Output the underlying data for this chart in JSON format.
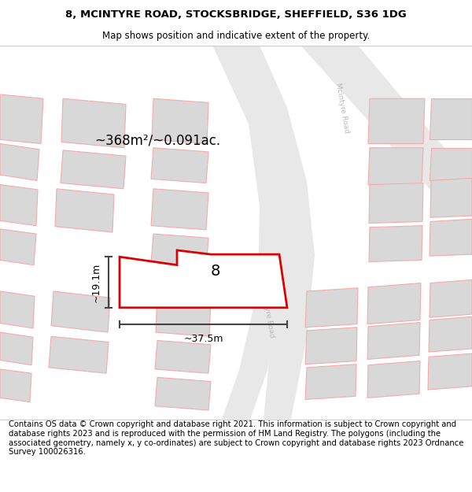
{
  "title_line1": "8, MCINTYRE ROAD, STOCKSBRIDGE, SHEFFIELD, S36 1DG",
  "title_line2": "Map shows position and indicative extent of the property.",
  "footer_text": "Contains OS data © Crown copyright and database right 2021. This information is subject to Crown copyright and database rights 2023 and is reproduced with the permission of HM Land Registry. The polygons (including the associated geometry, namely x, y co-ordinates) are subject to Crown copyright and database rights 2023 Ordnance Survey 100026316.",
  "area_label": "~368m²/~0.091ac.",
  "number_label": "8",
  "dim_width_label": "~37.5m",
  "dim_height_label": "~19.1m",
  "background_color": "#ffffff",
  "map_bg_color": "#ffffff",
  "road_fill_color": "#e8e8e8",
  "building_outline_color": "#f5aaaa",
  "building_fill_color": "#d8d8d8",
  "road_label_color": "#bbbbbb",
  "property_color": "#dd0000",
  "property_fill": "#ffffff",
  "dim_line_color": "#444444",
  "separator_color": "#cccccc",
  "title_fontsize": 9.5,
  "subtitle_fontsize": 8.5,
  "footer_fontsize": 7.2
}
